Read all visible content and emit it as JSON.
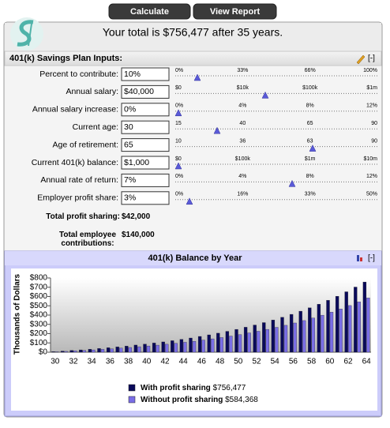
{
  "header": {
    "buttons": [
      "Calculate",
      "View Report"
    ],
    "total_text": "Your total is $756,477 after 35 years."
  },
  "inputs": {
    "title": "401(k) Savings Plan Inputs:",
    "collapse": "[-]",
    "rows": [
      {
        "label": "Percent to contribute:",
        "value": "10%",
        "scale": [
          "0%",
          "33%",
          "66%",
          "100%"
        ]
      },
      {
        "label": "Annual salary:",
        "value": "$40,000",
        "scale": [
          "$0",
          "$10k",
          "$100k",
          "$1m"
        ]
      },
      {
        "label": "Annual salary increase:",
        "value": "0%",
        "scale": [
          "0%",
          "4%",
          "8%",
          "12%"
        ]
      },
      {
        "label": "Current age:",
        "value": "30",
        "scale": [
          "15",
          "40",
          "65",
          "90"
        ]
      },
      {
        "label": "Age of retirement:",
        "value": "65",
        "scale": [
          "10",
          "36",
          "63",
          "90"
        ]
      },
      {
        "label": "Current 401(k) balance:",
        "value": "$1,000",
        "scale": [
          "$0",
          "$100k",
          "$1m",
          "$10m"
        ]
      },
      {
        "label": "Annual rate of return:",
        "value": "7%",
        "scale": [
          "0%",
          "4%",
          "8%",
          "12%"
        ]
      },
      {
        "label": "Employer profit share:",
        "value": "3%",
        "scale": [
          "0%",
          "16%",
          "33%",
          "50%"
        ]
      }
    ]
  },
  "totals": [
    {
      "label": "Total profit sharing:",
      "value": "$42,000"
    },
    {
      "label": "Total employee contributions:",
      "value": "$140,000"
    }
  ],
  "chart_panel": {
    "collapse": "[-]"
  },
  "chart_data": {
    "type": "bar",
    "title": "401(k) Balance by Year",
    "y_label": "Thousands of Dollars",
    "categories": [
      "30",
      null,
      "32",
      null,
      "34",
      null,
      "36",
      null,
      "38",
      null,
      "40",
      null,
      "42",
      null,
      "44",
      null,
      "46",
      null,
      "48",
      null,
      "50",
      null,
      "52",
      null,
      "54",
      null,
      "56",
      null,
      "58",
      null,
      "60",
      null,
      "62",
      null,
      "64"
    ],
    "series": [
      {
        "name": "With profit sharing",
        "legend_value": "$756,477",
        "color": "#0a0a5a",
        "values": [
          6,
          12,
          19,
          25,
          32,
          40,
          48,
          57,
          66,
          77,
          87,
          99,
          111,
          124,
          138,
          153,
          170,
          187,
          205,
          225,
          246,
          269,
          293,
          319,
          347,
          376,
          408,
          442,
          478,
          517,
          559,
          603,
          651,
          702,
          756.477
        ]
      },
      {
        "name": "Without profit sharing",
        "legend_value": "$584,368",
        "color": "#7a6ee6",
        "values": [
          5,
          9,
          15,
          19,
          25,
          31,
          37,
          44,
          51,
          59,
          67,
          76,
          86,
          96,
          107,
          118,
          131,
          144,
          158,
          174,
          190,
          208,
          226,
          246,
          268,
          290,
          315,
          341,
          369,
          399,
          432,
          466,
          503,
          542,
          584.368
        ]
      }
    ],
    "ylim": [
      0,
      800
    ],
    "yticks": [
      {
        "value": 0,
        "label": "$0"
      },
      {
        "value": 100,
        "label": "$100"
      },
      {
        "value": 200,
        "label": "$200"
      },
      {
        "value": 300,
        "label": "$300"
      },
      {
        "value": 400,
        "label": "$400"
      },
      {
        "value": 500,
        "label": "$500"
      },
      {
        "value": 600,
        "label": "$600"
      },
      {
        "value": 700,
        "label": "$700"
      },
      {
        "value": 800,
        "label": "$800"
      }
    ]
  }
}
